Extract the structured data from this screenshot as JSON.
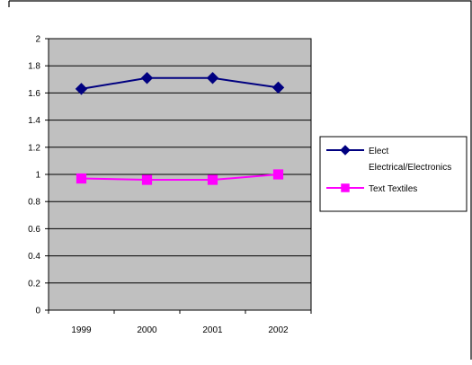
{
  "chart_data": {
    "type": "line",
    "title": "",
    "xlabel": "",
    "ylabel": "",
    "categories": [
      "1999",
      "2000",
      "2001",
      "2002"
    ],
    "ylim": [
      0,
      2
    ],
    "y_ticks": [
      "0",
      "0.2",
      "0.4",
      "0.6",
      "0.8",
      "1",
      "1.2",
      "1.4",
      "1.6",
      "1.8",
      "2"
    ],
    "grid": true,
    "legend_position": "right",
    "series": [
      {
        "name": "Elect Electrical/Electronics",
        "legend_lines": [
          "Elect",
          "Electrical/Electronics"
        ],
        "values": [
          1.63,
          1.71,
          1.71,
          1.64
        ],
        "color": "#000080",
        "marker": "diamond"
      },
      {
        "name": "Text Textiles",
        "legend_lines": [
          "Text Textiles"
        ],
        "values": [
          0.97,
          0.96,
          0.96,
          1.0
        ],
        "color": "#FF00FF",
        "marker": "square"
      }
    ]
  },
  "colors": {
    "plot_background": "#C0C0C0",
    "gridline": "#000000",
    "frame": "#000000"
  }
}
